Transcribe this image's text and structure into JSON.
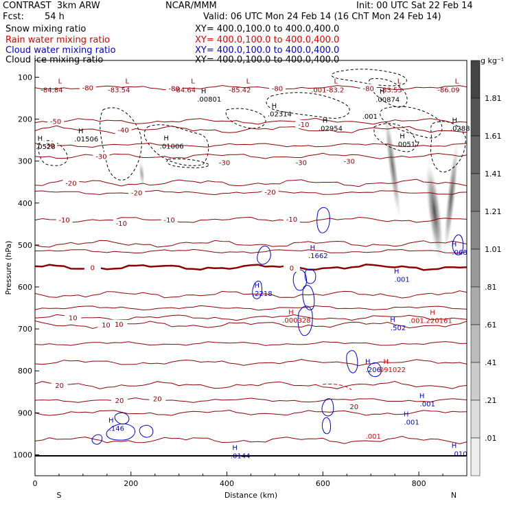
{
  "header": {
    "model": "CONTRAST  3km ARW",
    "org": "NCAR/MMM",
    "init": "Init: 00 UTC Sat 22 Feb 14",
    "fcst_label": "Fcst:",
    "fcst_value": "54 h",
    "valid": "Valid: 06 UTC Mon 24 Feb 14 (16 ChT Mon 24 Feb 14)"
  },
  "fields": [
    {
      "name": "Snow mixing ratio",
      "color": "#000000",
      "xy": "XY= 400.0,100.0 to 400.0,400.0"
    },
    {
      "name": "Rain water mixing ratio",
      "color": "#e00000",
      "xy": "XY= 400.0,100.0 to 400.0,400.0"
    },
    {
      "name": "Cloud water mixing ratio",
      "color": "#0000cc",
      "xy": "XY= 400.0,100.0 to 400.0,400.0"
    },
    {
      "name": "Cloud ice mixing ratio",
      "color": "#000000",
      "xy": "XY= 400.0,100.0 to 400.0,400.0"
    }
  ],
  "chart_data": {
    "type": "cross-section",
    "xlabel": "Distance (km)",
    "ylabel": "Pressure (hPa)",
    "xlim": [
      0,
      900
    ],
    "ylim": [
      1050,
      60
    ],
    "x_ticks": [
      0,
      200,
      400,
      600,
      800
    ],
    "y_ticks": [
      100,
      200,
      300,
      400,
      500,
      600,
      700,
      800,
      900,
      1000
    ],
    "x_end_labels": {
      "left": "S",
      "right": "N"
    },
    "colorbar": {
      "unit": "g kg⁻¹",
      "labels": [
        "1.81",
        "1.61",
        "1.41",
        "1.21",
        "1.01",
        ".81",
        ".61",
        ".41",
        ".21",
        ".01"
      ],
      "colors": [
        "#444444",
        "#555555",
        "#666666",
        "#777777",
        "#888888",
        "#999999",
        "#aaaaaa",
        "#bbbbbb",
        "#cccccc",
        "#dddddd",
        "#eeeeee"
      ]
    },
    "temperature_contours": {
      "color": "#8b0000",
      "levels": [
        {
          "p": 125,
          "label": "-80"
        },
        {
          "p": 205,
          "label": "-50"
        },
        {
          "p": 225,
          "label": "-40"
        },
        {
          "p": 262,
          "label": "-30"
        },
        {
          "p": 288,
          "label": "-30"
        },
        {
          "p": 352,
          "label": "-20"
        },
        {
          "p": 375,
          "label": "-20"
        },
        {
          "p": 440,
          "label": "-10"
        },
        {
          "p": 497,
          "label": ""
        },
        {
          "p": 515,
          "label": ""
        },
        {
          "p": 553,
          "label": "0"
        },
        {
          "p": 618,
          "label": ""
        },
        {
          "p": 650,
          "label": ""
        },
        {
          "p": 673,
          "label": "10"
        },
        {
          "p": 690,
          "label": "10"
        },
        {
          "p": 735,
          "label": ""
        },
        {
          "p": 780,
          "label": ""
        },
        {
          "p": 834,
          "label": "20"
        },
        {
          "p": 870,
          "label": "20"
        },
        {
          "p": 900,
          "label": ""
        },
        {
          "p": 965,
          "label": ""
        }
      ]
    },
    "extra_contour_labels": [
      {
        "x": 290,
        "p": 126,
        "text": "-80"
      },
      {
        "x": 505,
        "p": 126,
        "text": "-80"
      },
      {
        "x": 695,
        "p": 126,
        "text": "-80"
      },
      {
        "x": 395,
        "p": 303,
        "text": "-30"
      },
      {
        "x": 555,
        "p": 303,
        "text": "-30"
      },
      {
        "x": 655,
        "p": 300,
        "text": "-30"
      },
      {
        "x": 490,
        "p": 373,
        "text": "-20"
      },
      {
        "x": 180,
        "p": 448,
        "text": "-10"
      },
      {
        "x": 280,
        "p": 440,
        "text": "-10"
      },
      {
        "x": 535,
        "p": 438,
        "text": "-10"
      },
      {
        "x": 175,
        "p": 688,
        "text": "10"
      },
      {
        "x": 255,
        "p": 866,
        "text": "20"
      },
      {
        "x": 665,
        "p": 885,
        "text": "20"
      },
      {
        "x": 535,
        "p": 554,
        "text": "0"
      },
      {
        "x": 560,
        "p": 212,
        "text": "-10"
      }
    ],
    "low_labels": [
      {
        "x": 35,
        "p": 87,
        "value": "-84.84"
      },
      {
        "x": 175,
        "p": 87,
        "value": "-83.54"
      },
      {
        "x": 312,
        "p": 87,
        "value": "-84.64"
      },
      {
        "x": 427,
        "p": 87,
        "value": "-85.42"
      },
      {
        "x": 610,
        "p": 87,
        "value": ".001-83.2"
      },
      {
        "x": 742,
        "p": 87,
        "value": "-83.53"
      },
      {
        "x": 862,
        "p": 87,
        "value": "-86.09"
      }
    ],
    "snow_maxima": [
      {
        "x": 363,
        "p": 145,
        "value": ".00801"
      },
      {
        "x": 510,
        "p": 180,
        "value": ".02314"
      },
      {
        "x": 616,
        "p": 215,
        "value": ".02954"
      },
      {
        "x": 735,
        "p": 146,
        "value": ".00874"
      },
      {
        "x": 107,
        "p": 240,
        "value": ".01506"
      },
      {
        "x": 285,
        "p": 257,
        "value": ".01006"
      },
      {
        "x": 777,
        "p": 252,
        "value": ".00517"
      },
      {
        "x": 886,
        "p": 215,
        "value": ".0288"
      },
      {
        "x": 22,
        "p": 258,
        "value": ".0528"
      }
    ],
    "snow_minor_labels": [
      {
        "x": 698,
        "p": 199,
        "text": ".001"
      }
    ],
    "cloud_water_maxima": [
      {
        "x": 590,
        "p": 518,
        "value": ".1662"
      },
      {
        "x": 474,
        "p": 608,
        "value": ".2218"
      },
      {
        "x": 765,
        "p": 575,
        "value": ".001"
      },
      {
        "x": 757,
        "p": 690,
        "value": ".502"
      },
      {
        "x": 705,
        "p": 790,
        "value": ".206"
      },
      {
        "x": 818,
        "p": 872,
        "value": ".001"
      },
      {
        "x": 785,
        "p": 915,
        "value": ".001"
      },
      {
        "x": 170,
        "p": 930,
        "value": ".146"
      },
      {
        "x": 428,
        "p": 995,
        "value": ".0144"
      },
      {
        "x": 885,
        "p": 990,
        "value": ".010"
      },
      {
        "x": 885,
        "p": 510,
        "value": ".068"
      }
    ],
    "rain_maxima": [
      {
        "x": 545,
        "p": 672,
        "value": ".000328"
      },
      {
        "x": 840,
        "p": 673,
        "value": ".220161"
      },
      {
        "x": 743,
        "p": 790,
        "value": ".091022"
      }
    ],
    "rain_minor_labels": [
      {
        "x": 795,
        "p": 686,
        "text": ".001"
      },
      {
        "x": 705,
        "p": 962,
        "text": ".001"
      }
    ],
    "shading_columns": [
      {
        "x_top": 730,
        "p_top": 180,
        "x_bottom": 760,
        "p_bottom": 440,
        "width_km": 18,
        "max_gkg": 1.01
      },
      {
        "x_top": 820,
        "p_top": 300,
        "x_bottom": 845,
        "p_bottom": 540,
        "width_km": 28,
        "max_gkg": 1.81
      },
      {
        "x_top": 880,
        "p_top": 250,
        "x_bottom": 855,
        "p_bottom": 520,
        "width_km": 18,
        "max_gkg": 1.21
      },
      {
        "x_top": 220,
        "p_top": 300,
        "x_bottom": 225,
        "p_bottom": 360,
        "width_km": 12,
        "max_gkg": 0.41
      }
    ]
  }
}
